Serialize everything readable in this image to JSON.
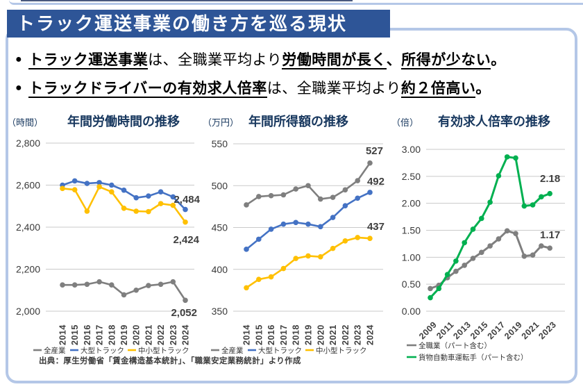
{
  "header": {
    "title": "トラック運送事業の働き方を巡る現状"
  },
  "bullets": [
    {
      "marker": "●",
      "segments": [
        {
          "t": "トラック運送事業",
          "b": true,
          "u": true
        },
        {
          "t": "は、全職業平均より",
          "b": false,
          "u": false
        },
        {
          "t": "労働時間が長く",
          "b": true,
          "u": true
        },
        {
          "t": "、",
          "b": true,
          "u": false
        },
        {
          "t": "所得が少ない",
          "b": true,
          "u": true
        },
        {
          "t": "。",
          "b": true,
          "u": false
        }
      ]
    },
    {
      "marker": "●",
      "segments": [
        {
          "t": "トラックドライバーの有効求人倍率",
          "b": true,
          "u": true
        },
        {
          "t": "は、全職業平均より",
          "b": false,
          "u": false
        },
        {
          "t": "約２倍高い",
          "b": true,
          "u": true
        },
        {
          "t": "。",
          "b": true,
          "u": false
        }
      ]
    }
  ],
  "source": "出典：厚生労働省「賃金構造基本統計」、「職業安定業務統計」より作成",
  "colors": {
    "banner": "#2e5597",
    "panel_border": "#b4c7e7",
    "grid": "#c9c9c9",
    "all_industry_gray": "#7f7f7f",
    "large_truck_blue": "#4472c4",
    "small_truck_yellow": "#ffc000",
    "driver_green": "#00b050"
  },
  "chart_data": [
    {
      "type": "line",
      "unit": "（時間）",
      "title": "年間労働時間の推移",
      "x": [
        2014,
        2015,
        2016,
        2017,
        2018,
        2019,
        2020,
        2021,
        2022,
        2023,
        2024
      ],
      "x_tick_labels": [
        "2014",
        "2015",
        "2016",
        "2017",
        "2018",
        "2019",
        "2020",
        "2021",
        "2022",
        "2023",
        "2024"
      ],
      "y_ticks": [
        {
          "label": "2,800",
          "value": 2800
        },
        {
          "label": "2,600",
          "value": 2600
        },
        {
          "label": "2,400",
          "value": 2400
        },
        {
          "label": "2,200",
          "value": 2200
        },
        {
          "label": "2,000",
          "value": 2000
        }
      ],
      "ylim": [
        2000,
        2800
      ],
      "grid": true,
      "legend_position": "bottom",
      "series": [
        {
          "name": "全産業",
          "color": "#7f7f7f",
          "values": [
            2125,
            2125,
            2128,
            2140,
            2125,
            2078,
            2100,
            2122,
            2128,
            2140,
            2052
          ],
          "end_label": "2,052"
        },
        {
          "name": "大型トラック",
          "color": "#4472c4",
          "values": [
            2600,
            2620,
            2608,
            2612,
            2600,
            2576,
            2540,
            2548,
            2568,
            2544,
            2484
          ],
          "end_label": "2,484"
        },
        {
          "name": "中小型トラック",
          "color": "#ffc000",
          "values": [
            2584,
            2578,
            2476,
            2592,
            2568,
            2490,
            2476,
            2474,
            2512,
            2504,
            2424
          ],
          "end_label": "2,424"
        }
      ]
    },
    {
      "type": "line",
      "unit": "（万円）",
      "title": "年間所得額の推移",
      "x": [
        2014,
        2015,
        2016,
        2017,
        2018,
        2019,
        2020,
        2021,
        2022,
        2023,
        2024
      ],
      "x_tick_labels": [
        "2014",
        "2015",
        "2016",
        "2017",
        "2018",
        "2019",
        "2020",
        "2021",
        "2022",
        "2023",
        "2024"
      ],
      "y_ticks": [
        {
          "label": "550",
          "value": 550
        },
        {
          "label": "500",
          "value": 500
        },
        {
          "label": "450",
          "value": 450
        },
        {
          "label": "400",
          "value": 400
        },
        {
          "label": "350",
          "value": 350
        }
      ],
      "ylim": [
        350,
        550
      ],
      "grid": true,
      "legend_position": "bottom",
      "series": [
        {
          "name": "全産業",
          "color": "#7f7f7f",
          "values": [
            477,
            487,
            488,
            489,
            496,
            500,
            484,
            486,
            495,
            506,
            527
          ],
          "end_label": "527"
        },
        {
          "name": "大型トラック",
          "color": "#4472c4",
          "values": [
            424,
            436,
            448,
            454,
            456,
            454,
            451,
            462,
            476,
            485,
            492
          ],
          "end_label": "492"
        },
        {
          "name": "中小型トラック",
          "color": "#ffc000",
          "values": [
            378,
            388,
            391,
            401,
            413,
            416,
            415,
            425,
            434,
            438,
            437
          ],
          "end_label": "437"
        }
      ]
    },
    {
      "type": "line",
      "unit": "（倍）",
      "title": "有効求人倍率の推移",
      "x": [
        2009,
        2010,
        2011,
        2012,
        2013,
        2014,
        2015,
        2016,
        2017,
        2018,
        2019,
        2020,
        2021,
        2022,
        2023
      ],
      "x_tick_labels": [
        "2009",
        "2011",
        "2013",
        "2015",
        "2017",
        "2019",
        "2021",
        "2023"
      ],
      "y_ticks": [
        {
          "label": "3.00",
          "value": 3.0
        },
        {
          "label": "2.50",
          "value": 2.5
        },
        {
          "label": "2.00",
          "value": 2.0
        },
        {
          "label": "1.50",
          "value": 1.5
        },
        {
          "label": "1.00",
          "value": 1.0
        },
        {
          "label": "0.50",
          "value": 0.5
        },
        {
          "label": "0.00",
          "value": 0.0
        }
      ],
      "ylim": [
        0,
        3
      ],
      "grid": true,
      "legend_position": "bottom",
      "series": [
        {
          "name": "全職業（パート含む）",
          "color": "#7f7f7f",
          "values": [
            0.42,
            0.48,
            0.62,
            0.74,
            0.85,
            0.98,
            1.09,
            1.21,
            1.34,
            1.49,
            1.44,
            1.02,
            1.04,
            1.21,
            1.17
          ],
          "end_label": "1.17"
        },
        {
          "name": "貨物自動車運転手（パート含む）",
          "color": "#00b050",
          "values": [
            0.25,
            0.42,
            0.68,
            0.93,
            1.27,
            1.52,
            1.72,
            2.02,
            2.51,
            2.86,
            2.84,
            1.95,
            1.97,
            2.12,
            2.18
          ],
          "end_label": "2.18"
        }
      ]
    }
  ]
}
